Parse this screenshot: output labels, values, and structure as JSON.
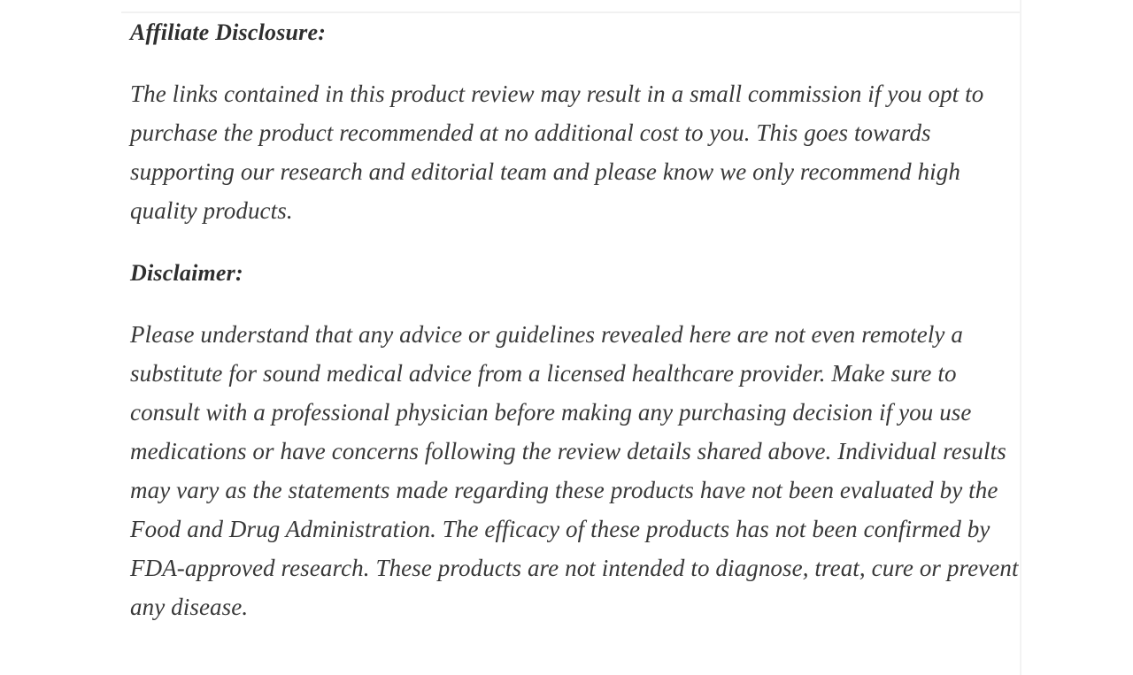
{
  "page": {
    "background_color": "#ffffff",
    "divider_color": "#f1f1f1",
    "heading_color": "#2e2e2e",
    "body_text_color": "#383838",
    "sections": [
      {
        "heading": "Affiliate Disclosure:",
        "body": "The links contained in this product review may result in a small commission if you opt to purchase the product recommended at no additional cost to you. This goes towards supporting our research and editorial team and please know we only recommend high quality products."
      },
      {
        "heading": "Disclaimer:",
        "body": "Please understand that any advice or guidelines revealed here are not even remotely a substitute for sound medical advice from a licensed healthcare provider. Make sure to consult with a professional physician before making any purchasing decision if you use medications or have concerns following the review details shared above. Individual results may vary as the statements made regarding these products have not been evaluated by the Food and Drug Administration. The efficacy of these products has not been confirmed by FDA-approved research. These products are not intended to diagnose, treat, cure or prevent any disease."
      }
    ]
  }
}
